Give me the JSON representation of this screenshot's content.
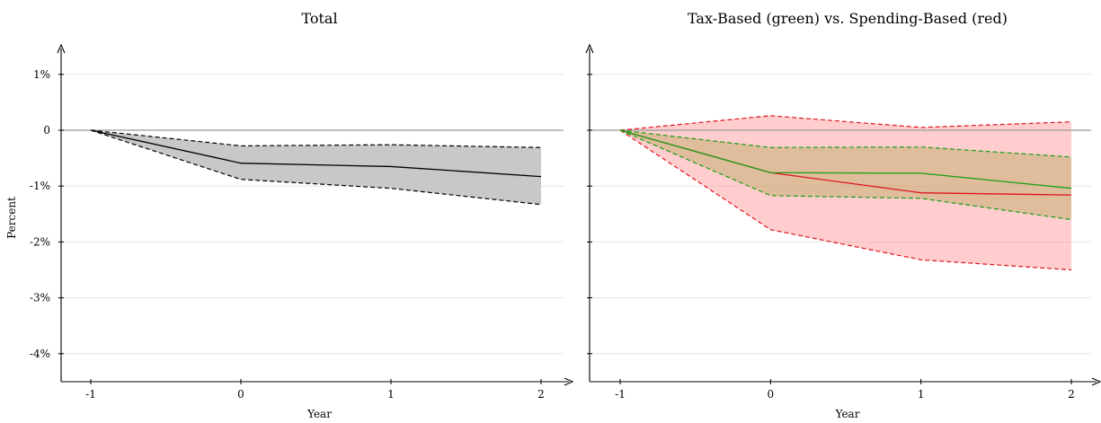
{
  "chart_data": [
    {
      "type": "line",
      "title": "Total",
      "xlabel": "Year",
      "ylabel": "Percent",
      "x": [
        -1,
        0,
        1,
        2
      ],
      "x_ticks": [
        "-1",
        "0",
        "1",
        "2"
      ],
      "y_ticks": [
        {
          "value": 1,
          "label": "1%"
        },
        {
          "value": 0,
          "label": "0"
        },
        {
          "value": -1,
          "label": "-1%"
        },
        {
          "value": -2,
          "label": "-2%"
        },
        {
          "value": -3,
          "label": "-3%"
        },
        {
          "value": -4,
          "label": "-4%"
        }
      ],
      "ylim": [
        -4.4,
        1.5
      ],
      "xlim": [
        -1.2,
        2.2
      ],
      "grid": true,
      "series": [
        {
          "color": "#000000",
          "fill": "#c8c8c8",
          "fill_opacity": 1,
          "values": [
            0,
            -0.59,
            -0.65,
            -0.83
          ],
          "lower": [
            0,
            -0.88,
            -1.04,
            -1.33
          ],
          "upper": [
            0,
            -0.28,
            -0.26,
            -0.31
          ]
        }
      ]
    },
    {
      "type": "line",
      "title": "Tax-Based (green) vs. Spending-Based (red)",
      "xlabel": "Year",
      "ylabel": "",
      "x": [
        -1,
        0,
        1,
        2
      ],
      "x_ticks": [
        "-1",
        "0",
        "1",
        "2"
      ],
      "y_ticks": [
        {
          "value": 1,
          "label": ""
        },
        {
          "value": 0,
          "label": ""
        },
        {
          "value": -1,
          "label": ""
        },
        {
          "value": -2,
          "label": ""
        },
        {
          "value": -3,
          "label": ""
        },
        {
          "value": -4,
          "label": ""
        }
      ],
      "ylim": [
        -4.4,
        1.5
      ],
      "xlim": [
        -1.2,
        2.2
      ],
      "grid": true,
      "series": [
        {
          "color": "#e0141e",
          "fill": "#ff9b9b",
          "fill_opacity": 0.5,
          "values": [
            0,
            -0.76,
            -1.12,
            -1.16
          ],
          "lower": [
            0,
            -1.78,
            -2.32,
            -2.5
          ],
          "upper": [
            0,
            0.26,
            0.05,
            0.15
          ]
        },
        {
          "color": "#16a016",
          "fill": "#9a9a3a",
          "fill_opacity": 0.33,
          "values": [
            0,
            -0.76,
            -0.77,
            -1.04
          ],
          "lower": [
            0,
            -1.17,
            -1.22,
            -1.6
          ],
          "upper": [
            0,
            -0.31,
            -0.3,
            -0.48
          ]
        }
      ]
    }
  ]
}
